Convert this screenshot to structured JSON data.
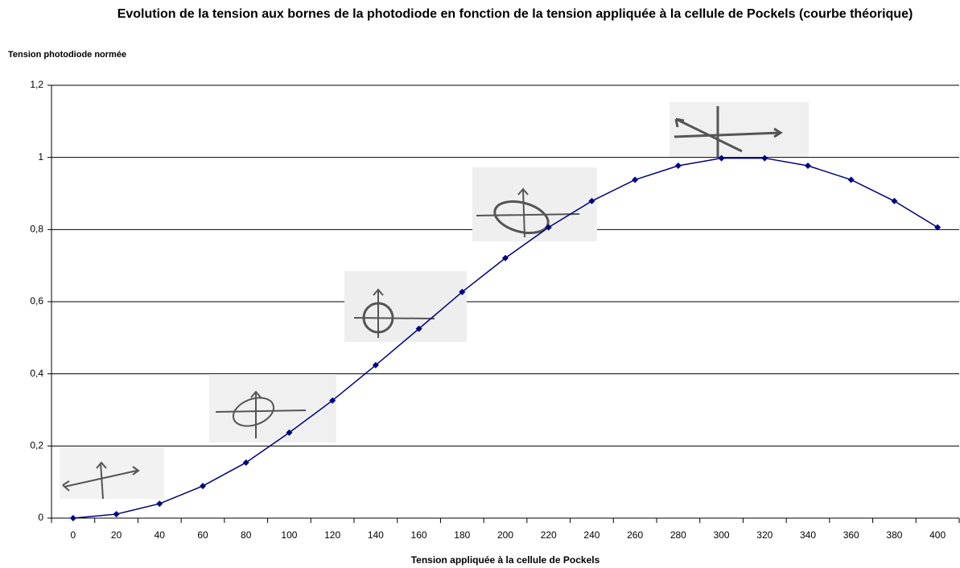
{
  "chart_data": {
    "type": "line",
    "title": "Evolution de la tension aux bornes de la photodiode en fonction de la tension appliquée à la cellule de Pockels (courbe théorique)",
    "y_label": "Tension photodiode normée",
    "x_label": "Tension appliquée à la cellule de Pockels",
    "categories": [
      "0",
      "20",
      "40",
      "60",
      "80",
      "100",
      "120",
      "140",
      "160",
      "180",
      "200",
      "220",
      "240",
      "260",
      "280",
      "300",
      "320",
      "340",
      "360",
      "380",
      "400"
    ],
    "series": [
      {
        "name": "Tension photodiode normée",
        "color": "#000080",
        "values": [
          0,
          0.011,
          0.04,
          0.089,
          0.154,
          0.237,
          0.326,
          0.424,
          0.525,
          0.627,
          0.721,
          0.806,
          0.879,
          0.938,
          0.977,
          0.998,
          0.998,
          0.977,
          0.938,
          0.879,
          0.806
        ]
      }
    ],
    "ylim": [
      0,
      1.2
    ],
    "yticks": [
      0,
      {
        "value": 0.2,
        "label": "0,2"
      },
      {
        "value": 0.4,
        "label": "0,4"
      },
      {
        "value": 0.6,
        "label": "0,6"
      },
      {
        "value": 0.8,
        "label": "0,8"
      },
      1,
      {
        "value": 1.2,
        "label": "1,2"
      }
    ],
    "grid": true
  }
}
